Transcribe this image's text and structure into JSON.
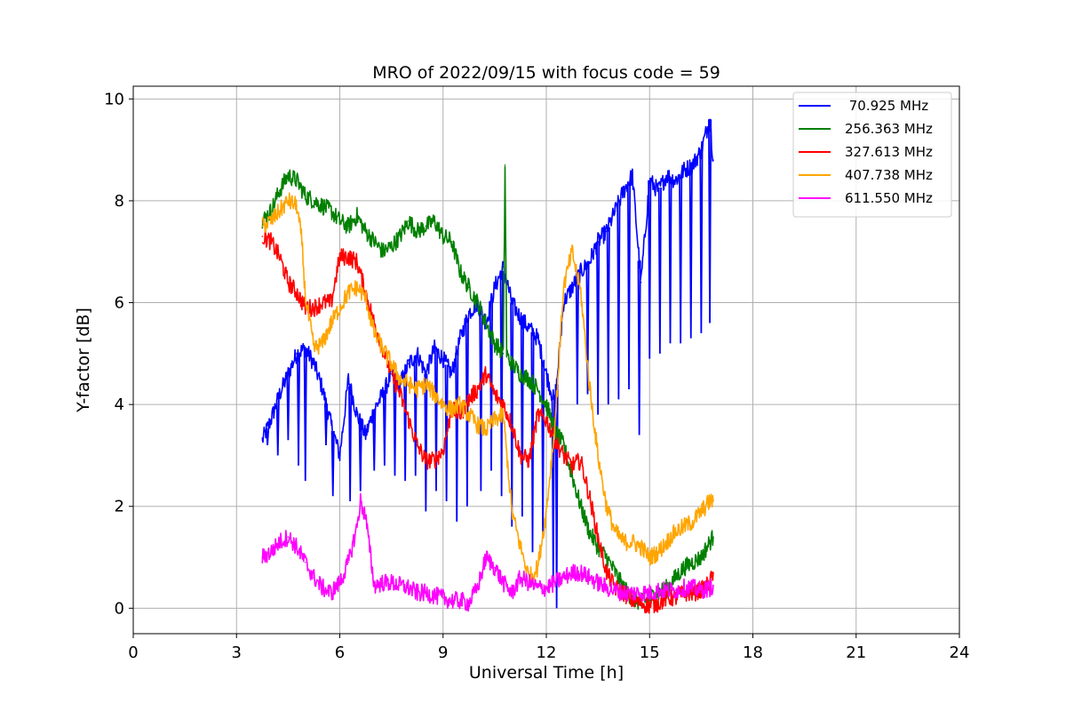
{
  "chart_data": {
    "type": "line",
    "title": "MRO of 2022/09/15 with focus code = 59",
    "xlabel": "Universal Time [h]",
    "ylabel": "Y-factor [dB]",
    "xlim": [
      0,
      24
    ],
    "ylim": [
      -0.5,
      10.25
    ],
    "xticks": [
      0,
      3,
      6,
      9,
      12,
      15,
      18,
      21,
      24
    ],
    "yticks": [
      0,
      2,
      4,
      6,
      8,
      10
    ],
    "grid": true,
    "legend_position": "top-right",
    "series": [
      {
        "name": " 70.925 MHz",
        "color": "#0000ff",
        "x": [
          3.75,
          4.0,
          4.25,
          4.5,
          4.75,
          5.0,
          5.25,
          5.5,
          5.75,
          6.0,
          6.25,
          6.5,
          6.75,
          7.0,
          7.25,
          7.5,
          7.75,
          8.0,
          8.25,
          8.5,
          8.75,
          9.0,
          9.25,
          9.5,
          9.75,
          10.0,
          10.25,
          10.5,
          10.75,
          11.0,
          11.25,
          11.5,
          11.75,
          12.0,
          12.25,
          12.5,
          12.75,
          13.0,
          13.25,
          13.5,
          13.75,
          14.0,
          14.25,
          14.5,
          14.75,
          15.0,
          15.25,
          15.5,
          15.75,
          16.0,
          16.25,
          16.5,
          16.75,
          16.85
        ],
        "y": [
          3.3,
          3.7,
          4.2,
          4.6,
          5.0,
          5.1,
          4.8,
          4.3,
          3.6,
          3.0,
          4.5,
          3.8,
          3.4,
          3.9,
          4.2,
          4.6,
          4.4,
          4.8,
          5.0,
          4.6,
          5.1,
          4.9,
          4.6,
          5.3,
          5.8,
          6.0,
          5.6,
          6.3,
          6.7,
          6.0,
          5.7,
          5.5,
          5.3,
          4.6,
          4.0,
          6.0,
          6.3,
          6.6,
          6.8,
          7.2,
          7.4,
          7.8,
          8.2,
          8.5,
          6.4,
          8.4,
          8.2,
          8.5,
          8.4,
          8.6,
          8.7,
          9.0,
          9.6,
          8.8
        ],
        "dips": [
          {
            "x": 3.9,
            "y": 3.2
          },
          {
            "x": 4.2,
            "y": 3.0
          },
          {
            "x": 4.5,
            "y": 3.3
          },
          {
            "x": 4.8,
            "y": 2.8
          },
          {
            "x": 5.0,
            "y": 2.5
          },
          {
            "x": 5.6,
            "y": 3.2
          },
          {
            "x": 5.8,
            "y": 2.2
          },
          {
            "x": 6.3,
            "y": 2.1
          },
          {
            "x": 6.6,
            "y": 2.3
          },
          {
            "x": 7.0,
            "y": 2.7
          },
          {
            "x": 7.3,
            "y": 2.8
          },
          {
            "x": 7.6,
            "y": 2.6
          },
          {
            "x": 7.9,
            "y": 2.5
          },
          {
            "x": 8.2,
            "y": 2.6
          },
          {
            "x": 8.5,
            "y": 1.9
          },
          {
            "x": 8.8,
            "y": 2.3
          },
          {
            "x": 9.1,
            "y": 2.1
          },
          {
            "x": 9.4,
            "y": 1.7
          },
          {
            "x": 9.7,
            "y": 2.0
          },
          {
            "x": 10.1,
            "y": 2.3
          },
          {
            "x": 10.4,
            "y": 2.7
          },
          {
            "x": 10.7,
            "y": 2.2
          },
          {
            "x": 11.0,
            "y": 1.6
          },
          {
            "x": 11.3,
            "y": 1.8
          },
          {
            "x": 11.6,
            "y": 1.1
          },
          {
            "x": 11.9,
            "y": 1.4
          },
          {
            "x": 12.2,
            "y": 0.6
          },
          {
            "x": 12.3,
            "y": 0.0
          },
          {
            "x": 12.9,
            "y": 4.0
          },
          {
            "x": 13.2,
            "y": 4.2
          },
          {
            "x": 13.5,
            "y": 3.8
          },
          {
            "x": 13.8,
            "y": 4.0
          },
          {
            "x": 14.1,
            "y": 4.1
          },
          {
            "x": 14.4,
            "y": 4.3
          },
          {
            "x": 14.7,
            "y": 3.4
          },
          {
            "x": 15.0,
            "y": 4.9
          },
          {
            "x": 15.3,
            "y": 5.0
          },
          {
            "x": 15.6,
            "y": 5.2
          },
          {
            "x": 15.9,
            "y": 5.2
          },
          {
            "x": 16.2,
            "y": 5.3
          },
          {
            "x": 16.5,
            "y": 5.4
          },
          {
            "x": 16.75,
            "y": 5.6
          }
        ]
      },
      {
        "name": "256.363 MHz",
        "color": "#008000",
        "x": [
          3.75,
          4.0,
          4.25,
          4.5,
          4.75,
          5.0,
          5.25,
          5.5,
          5.75,
          6.0,
          6.25,
          6.5,
          6.75,
          7.0,
          7.25,
          7.5,
          7.75,
          8.0,
          8.25,
          8.5,
          8.75,
          9.0,
          9.25,
          9.5,
          9.75,
          10.0,
          10.25,
          10.5,
          10.75,
          10.8,
          10.85,
          10.9,
          11.0,
          11.25,
          11.5,
          11.75,
          12.0,
          12.25,
          12.5,
          12.75,
          13.0,
          13.25,
          13.5,
          13.75,
          14.0,
          14.25,
          14.5,
          14.75,
          15.0,
          15.25,
          15.5,
          15.75,
          16.0,
          16.25,
          16.5,
          16.75,
          16.85
        ],
        "y": [
          7.6,
          7.8,
          8.2,
          8.5,
          8.4,
          8.1,
          8.0,
          7.9,
          7.8,
          7.6,
          7.5,
          7.7,
          7.4,
          7.2,
          7.0,
          7.1,
          7.3,
          7.6,
          7.4,
          7.5,
          7.6,
          7.3,
          7.2,
          6.6,
          6.3,
          6.0,
          5.6,
          5.2,
          5.0,
          8.7,
          5.0,
          4.9,
          4.8,
          4.6,
          4.5,
          4.3,
          4.0,
          3.5,
          3.2,
          2.6,
          2.0,
          1.5,
          1.2,
          1.0,
          0.7,
          0.4,
          0.2,
          0.1,
          0.2,
          0.3,
          0.4,
          0.6,
          0.8,
          0.9,
          1.0,
          1.3,
          1.4
        ]
      },
      {
        "name": "327.613 MHz",
        "color": "#ff0000",
        "x": [
          3.75,
          4.0,
          4.25,
          4.5,
          4.75,
          5.0,
          5.25,
          5.5,
          5.75,
          6.0,
          6.25,
          6.5,
          6.75,
          7.0,
          7.25,
          7.5,
          7.75,
          8.0,
          8.25,
          8.5,
          8.75,
          9.0,
          9.25,
          9.5,
          9.75,
          10.0,
          10.25,
          10.5,
          10.75,
          11.0,
          11.25,
          11.5,
          11.75,
          12.0,
          12.25,
          12.5,
          12.75,
          13.0,
          13.25,
          13.5,
          13.75,
          14.0,
          14.25,
          14.5,
          14.75,
          15.0,
          15.25,
          15.5,
          15.75,
          16.0,
          16.25,
          16.5,
          16.75,
          16.85
        ],
        "y": [
          7.3,
          7.2,
          6.9,
          6.4,
          6.2,
          5.9,
          5.9,
          6.0,
          6.0,
          6.9,
          6.9,
          6.8,
          6.2,
          5.6,
          5.1,
          4.6,
          4.2,
          3.7,
          3.2,
          2.9,
          2.9,
          3.1,
          3.9,
          3.8,
          4.1,
          4.3,
          4.6,
          4.2,
          4.0,
          3.6,
          3.0,
          2.9,
          3.8,
          3.7,
          3.3,
          3.0,
          2.8,
          2.9,
          2.2,
          1.4,
          0.7,
          0.4,
          0.3,
          0.15,
          0.1,
          0.05,
          0.1,
          0.2,
          0.2,
          0.3,
          0.3,
          0.35,
          0.5,
          0.7
        ]
      },
      {
        "name": "407.738 MHz",
        "color": "#ffa500",
        "x": [
          3.75,
          4.0,
          4.25,
          4.5,
          4.75,
          4.9,
          5.0,
          5.25,
          5.5,
          5.75,
          6.0,
          6.25,
          6.5,
          6.75,
          7.0,
          7.25,
          7.5,
          7.75,
          8.0,
          8.25,
          8.5,
          8.75,
          9.0,
          9.25,
          9.5,
          9.75,
          10.0,
          10.25,
          10.5,
          10.75,
          11.0,
          11.25,
          11.5,
          11.75,
          12.0,
          12.25,
          12.5,
          12.75,
          13.0,
          13.25,
          13.5,
          13.75,
          14.0,
          14.25,
          14.5,
          14.75,
          15.0,
          15.25,
          15.5,
          15.75,
          16.0,
          16.25,
          16.5,
          16.75,
          16.85
        ],
        "y": [
          7.5,
          7.6,
          7.8,
          8.0,
          7.9,
          7.2,
          6.1,
          5.1,
          5.2,
          5.6,
          5.9,
          6.2,
          6.3,
          6.1,
          5.4,
          5.1,
          4.8,
          4.5,
          4.4,
          4.3,
          4.4,
          4.2,
          4.0,
          3.9,
          4.0,
          3.8,
          3.6,
          3.5,
          3.7,
          3.8,
          1.9,
          1.2,
          0.6,
          0.8,
          1.9,
          3.6,
          6.3,
          7.0,
          6.2,
          4.4,
          3.0,
          2.0,
          1.5,
          1.3,
          1.3,
          1.2,
          1.0,
          1.1,
          1.3,
          1.5,
          1.6,
          1.7,
          1.9,
          2.1,
          2.1
        ]
      },
      {
        "name": "611.550 MHz",
        "color": "#ff00ff",
        "x": [
          3.75,
          4.0,
          4.25,
          4.5,
          4.75,
          5.0,
          5.25,
          5.5,
          5.75,
          6.0,
          6.25,
          6.5,
          6.6,
          6.75,
          7.0,
          7.25,
          7.5,
          7.75,
          8.0,
          8.25,
          8.5,
          8.75,
          9.0,
          9.25,
          9.5,
          9.75,
          10.0,
          10.25,
          10.5,
          10.75,
          11.0,
          11.25,
          11.5,
          11.75,
          12.0,
          12.25,
          12.5,
          12.75,
          13.0,
          13.25,
          13.5,
          13.75,
          14.0,
          14.25,
          14.5,
          14.75,
          15.0,
          15.25,
          15.5,
          15.75,
          16.0,
          16.25,
          16.5,
          16.75,
          16.85
        ],
        "y": [
          1.0,
          1.1,
          1.3,
          1.4,
          1.2,
          0.9,
          0.6,
          0.4,
          0.3,
          0.5,
          0.9,
          1.6,
          2.1,
          1.8,
          0.45,
          0.5,
          0.5,
          0.45,
          0.4,
          0.3,
          0.3,
          0.25,
          0.2,
          0.15,
          0.15,
          0.1,
          0.4,
          1.0,
          0.8,
          0.5,
          0.3,
          0.6,
          0.5,
          0.4,
          0.4,
          0.5,
          0.6,
          0.7,
          0.7,
          0.6,
          0.5,
          0.4,
          0.35,
          0.3,
          0.3,
          0.3,
          0.3,
          0.35,
          0.35,
          0.35,
          0.4,
          0.4,
          0.35,
          0.4,
          0.45
        ]
      }
    ]
  }
}
